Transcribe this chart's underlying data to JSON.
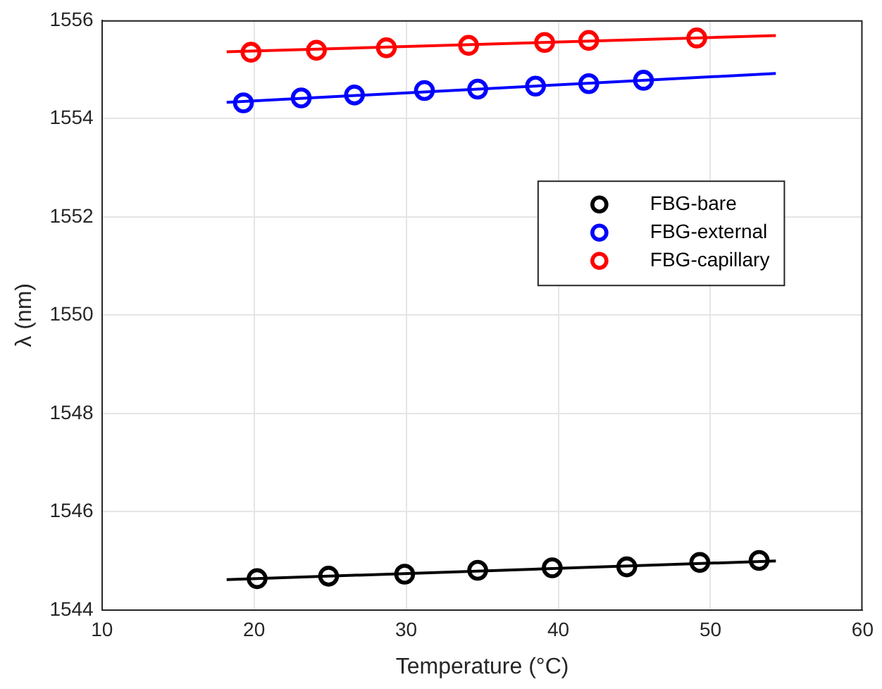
{
  "chart_data": {
    "type": "scatter",
    "xlabel": "Temperature (°C)",
    "ylabel": "λ (nm)",
    "xlim": [
      10,
      60
    ],
    "xticks": [
      10,
      20,
      30,
      40,
      50,
      60
    ],
    "ylim": [
      1544,
      1556
    ],
    "yticks": [
      1544,
      1546,
      1548,
      1550,
      1552,
      1554,
      1556
    ],
    "grid": true,
    "legend": "right",
    "marker": "circle",
    "series": [
      {
        "name": "FBG-bare",
        "color": "#000000",
        "x": [
          20.2,
          24.9,
          29.9,
          34.7,
          39.6,
          44.5,
          49.3,
          53.2
        ],
        "values": [
          1544.64,
          1544.69,
          1544.73,
          1544.81,
          1544.86,
          1544.88,
          1544.97,
          1545.01
        ]
      },
      {
        "name": "FBG-external",
        "color": "#0000ff",
        "x": [
          19.3,
          23.1,
          26.6,
          31.2,
          34.7,
          38.5,
          42.0,
          45.6
        ],
        "values": [
          1554.32,
          1554.42,
          1554.48,
          1554.57,
          1554.6,
          1554.66,
          1554.71,
          1554.78
        ]
      },
      {
        "name": "FBG-capillary",
        "color": "#ff0000",
        "x": [
          19.8,
          24.1,
          28.7,
          34.1,
          39.1,
          42.0,
          49.1
        ],
        "values": [
          1555.35,
          1555.39,
          1555.44,
          1555.49,
          1555.55,
          1555.59,
          1555.64
        ]
      },
      {
        "type": "line",
        "marker": "none",
        "color": "#000000",
        "x": [
          18.2,
          54.3
        ],
        "values": [
          1544.62,
          1545.0
        ]
      },
      {
        "type": "line",
        "marker": "none",
        "color": "#0000ff",
        "x": [
          18.2,
          54.3
        ],
        "values": [
          1554.33,
          1554.92
        ]
      },
      {
        "type": "line",
        "marker": "none",
        "color": "#ff0000",
        "x": [
          18.2,
          54.3
        ],
        "values": [
          1555.36,
          1555.69
        ]
      }
    ]
  }
}
